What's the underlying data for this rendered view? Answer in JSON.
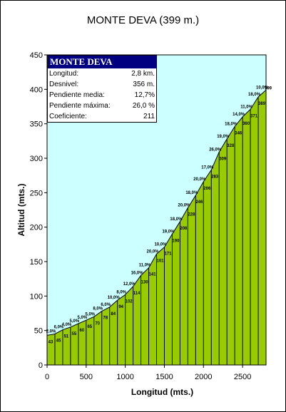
{
  "title": "MONTE DEVA (399 m.)",
  "chart_data": {
    "type": "area",
    "title": "MONTE DEVA (399 m.)",
    "xlabel": "Longitud (mts.)",
    "ylabel": "Altitud (mts.)",
    "xlim": [
      0,
      2800
    ],
    "ylim": [
      0,
      450
    ],
    "xticks": [
      "0",
      "500",
      "1000",
      "1500",
      "2000",
      "2500"
    ],
    "yticks": [
      "0",
      "50",
      "100",
      "150",
      "200",
      "250",
      "300",
      "350",
      "400",
      "450"
    ],
    "grid": false,
    "x": [
      0,
      100,
      200,
      300,
      400,
      500,
      600,
      700,
      800,
      900,
      1000,
      1100,
      1200,
      1300,
      1400,
      1500,
      1600,
      1700,
      1800,
      1900,
      2000,
      2100,
      2200,
      2300,
      2400,
      2500,
      2600,
      2700,
      2800
    ],
    "values": [
      43,
      45,
      51,
      55,
      60,
      65,
      70,
      78,
      84,
      94,
      102,
      114,
      130,
      141,
      161,
      171,
      190,
      208,
      228,
      246,
      266,
      283,
      309,
      328,
      346,
      360,
      371,
      389,
      399
    ],
    "point_labels": [
      "43",
      "45",
      "51",
      "55",
      "60",
      "65",
      "70",
      "78",
      "84",
      "94",
      "102",
      "114",
      "130",
      "141",
      "161",
      "171",
      "190",
      "208",
      "228",
      "246",
      "266",
      "283",
      "309",
      "328",
      "346",
      "360",
      "371",
      "389",
      "399"
    ],
    "grades": [
      "2,0%",
      "6,0%",
      "4,0%",
      "5,0%",
      "5,0%",
      "5,0%",
      "8,0%",
      "6,0%",
      "10,0%",
      "8,0%",
      "12,0%",
      "16,0%",
      "11,0%",
      "20,0%",
      "10,0%",
      "19,0%",
      "18,0%",
      "20,0%",
      "18,0%",
      "20,0%",
      "17,0%",
      "26,0%",
      "19,0%",
      "18,0%",
      "14,0%",
      "11,0%",
      "18,0%",
      "10,0%"
    ],
    "fill_color": "#99CC00",
    "plot_bg": "#CCFFFF"
  },
  "info_box": {
    "title": "MONTE DEVA",
    "rows": [
      {
        "label": "Longitud:",
        "value": "2,8 km."
      },
      {
        "label": "Desnivel:",
        "value": "356 m."
      },
      {
        "label": "Pendiente media:",
        "value": "12,7%"
      },
      {
        "label": "Pendiente máxima:",
        "value": "26,0 %"
      },
      {
        "label": "Coeficiente:",
        "value": "211"
      }
    ]
  }
}
